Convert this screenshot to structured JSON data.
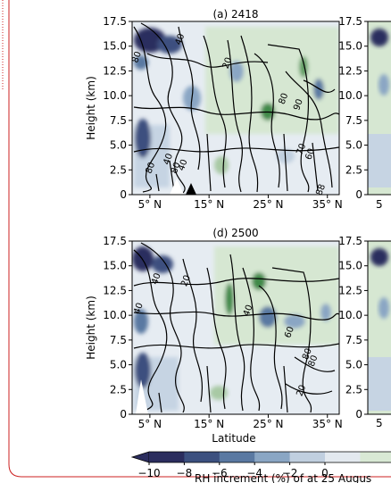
{
  "chart_data": [
    {
      "type": "heatmap",
      "title": "(a) 2418",
      "ylabel": "Height (km)",
      "xlabel": "",
      "x_ticks": [
        "5° N",
        "15° N",
        "25° N",
        "35° N"
      ],
      "x_tick_values": [
        5,
        15,
        25,
        35
      ],
      "y_ticks": [
        "0",
        "2.5",
        "5.0",
        "7.5",
        "10.0",
        "12.5",
        "15.0",
        "17.5"
      ],
      "y_tick_values": [
        0,
        2.5,
        5.0,
        7.5,
        10.0,
        12.5,
        15.0,
        17.5
      ],
      "xlim": [
        2,
        37
      ],
      "ylim": [
        0,
        17.5
      ],
      "contour_labels": [
        {
          "text": "40",
          "lat": 10.5,
          "h": 15.6
        },
        {
          "text": "20",
          "lat": 18.5,
          "h": 13.2
        },
        {
          "text": "80",
          "lat": 3.2,
          "h": 13.8
        },
        {
          "text": "80",
          "lat": 28.0,
          "h": 9.6
        },
        {
          "text": "90",
          "lat": 30.5,
          "h": 9.0
        },
        {
          "text": "80",
          "lat": 5.5,
          "h": 2.6
        },
        {
          "text": "40",
          "lat": 8.5,
          "h": 3.5
        },
        {
          "text": "80",
          "lat": 9.8,
          "h": 2.6
        },
        {
          "text": "40",
          "lat": 11.0,
          "h": 2.9
        },
        {
          "text": "70",
          "lat": 31.0,
          "h": 4.5
        },
        {
          "text": "60",
          "lat": 32.5,
          "h": 4.0
        },
        {
          "text": "88",
          "lat": 34.3,
          "h": 0.4
        }
      ]
    },
    {
      "type": "heatmap",
      "title": "(d) 2500",
      "ylabel": "Height (km)",
      "xlabel": "Latitude",
      "x_ticks": [
        "5° N",
        "15° N",
        "25° N",
        "35° N"
      ],
      "x_tick_values": [
        5,
        15,
        25,
        35
      ],
      "y_ticks": [
        "0",
        "2.5",
        "5.0",
        "7.5",
        "10.0",
        "12.5",
        "15.0",
        "17.5"
      ],
      "y_tick_values": [
        0,
        2.5,
        5.0,
        7.5,
        10.0,
        12.5,
        15.0,
        17.5
      ],
      "xlim": [
        2,
        37
      ],
      "ylim": [
        0,
        17.5
      ],
      "contour_labels": [
        {
          "text": "40",
          "lat": 6.5,
          "h": 13.6
        },
        {
          "text": "20",
          "lat": 11.5,
          "h": 13.4
        },
        {
          "text": "40",
          "lat": 3.5,
          "h": 10.6
        },
        {
          "text": "40",
          "lat": 22.0,
          "h": 10.4
        },
        {
          "text": "80",
          "lat": 32.0,
          "h": 6.0
        },
        {
          "text": "60",
          "lat": 29.0,
          "h": 8.2
        },
        {
          "text": "20",
          "lat": 31.0,
          "h": 2.3
        },
        {
          "text": "80",
          "lat": 33.0,
          "h": 5.3
        }
      ]
    }
  ],
  "right_panel_y_ticks": [
    "0",
    "2.5",
    "5.0",
    "7.5",
    "10.0",
    "12.5",
    "15.0",
    "17.5"
  ],
  "right_panel_x_tick_partial": "5",
  "colorbar": {
    "ticks": [
      "−10",
      "−8",
      "−6",
      "−4",
      "−2",
      "0"
    ],
    "tick_values": [
      -10,
      -8,
      -6,
      -4,
      -2,
      0
    ],
    "label": "RH increment (%) of at 25 Augus",
    "colors": [
      "#2b2d5e",
      "#3c507f",
      "#5a79a2",
      "#8aa6c4",
      "#c0cfdf",
      "#e3e9ef",
      "#d9e9d5"
    ]
  },
  "colors": {
    "dark": "#2b2d5e",
    "mid": "#5a79a2",
    "light_blue": "#c0cfdf",
    "light_green": "#d9e9d5",
    "green": "#3f8a4a",
    "frame_dots": "#cc2222"
  }
}
